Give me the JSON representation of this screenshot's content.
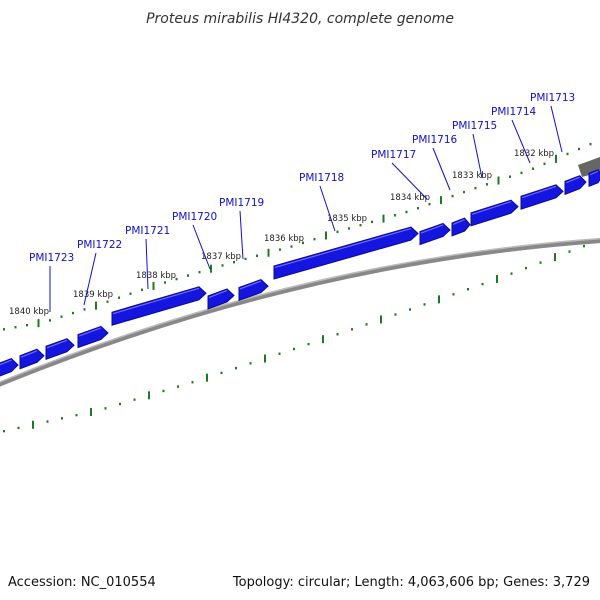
{
  "title": "Proteus mirabilis HI4320, complete genome",
  "footer": {
    "accession": "Accession: NC_010554",
    "summary": "Topology: circular; Length: 4,063,606 bp; Genes: 3,729"
  },
  "colors": {
    "gene_fill": "#1515e0",
    "gene_shadow": "#0a0a90",
    "backbone": "#888888",
    "backbone_dark": "#555555",
    "tick_green": "#1e7a1e",
    "label_blue": "#1010d0"
  },
  "chart_data": {
    "type": "genome-map",
    "scale_labels": [
      "1840 kbp",
      "1839 kbp",
      "1838 kbp",
      "1837 kbp",
      "1836 kbp",
      "1835 kbp",
      "1834 kbp",
      "1833 kbp",
      "1832 kbp"
    ],
    "genes": [
      "PMI1723",
      "PMI1722",
      "PMI1721",
      "PMI1720",
      "PMI1719",
      "PMI1718",
      "PMI1717",
      "PMI1716",
      "PMI1715",
      "PMI1714",
      "PMI1713"
    ]
  }
}
